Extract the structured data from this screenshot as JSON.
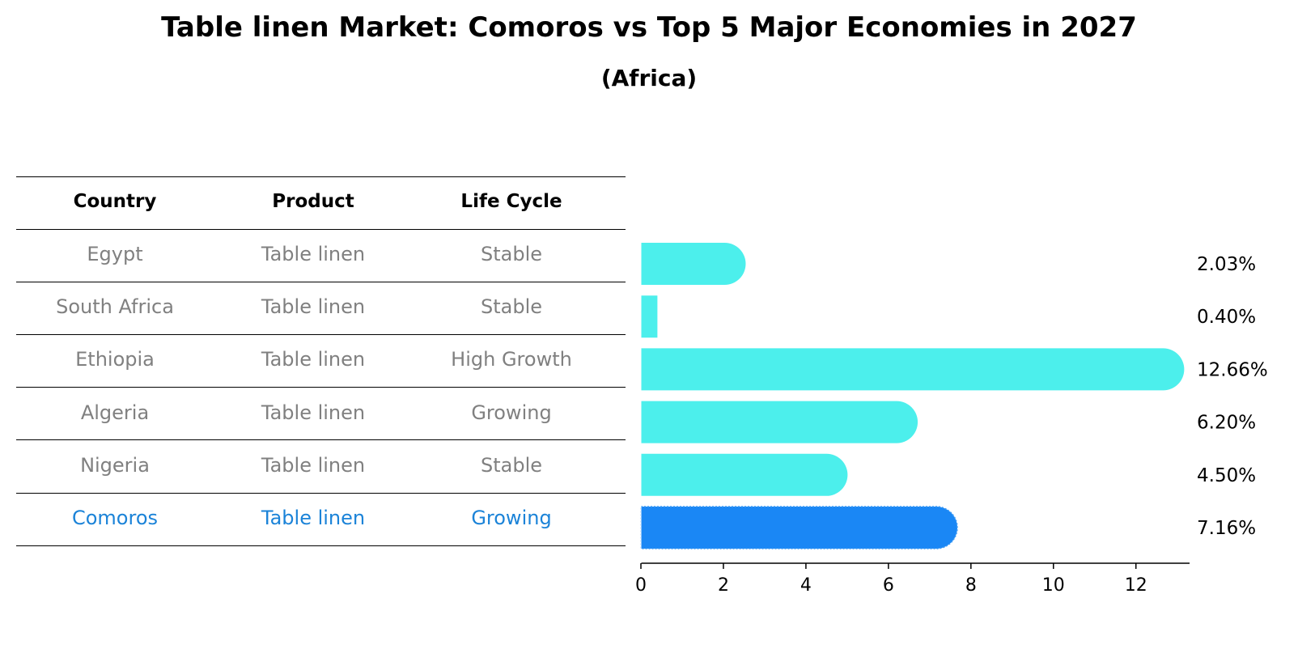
{
  "title": "Table linen Market: Comoros vs Top 5 Major Economies in 2027",
  "subtitle": "(Africa)",
  "table": {
    "headers": [
      "Country",
      "Product",
      "Life Cycle"
    ],
    "rows": [
      {
        "country": "Egypt",
        "product": "Table linen",
        "life_cycle": "Stable",
        "highlight": false
      },
      {
        "country": "South Africa",
        "product": "Table linen",
        "life_cycle": "Stable",
        "highlight": false
      },
      {
        "country": "Ethiopia",
        "product": "Table linen",
        "life_cycle": "High Growth",
        "highlight": false
      },
      {
        "country": "Algeria",
        "product": "Table linen",
        "life_cycle": "Growing",
        "highlight": false
      },
      {
        "country": "Nigeria",
        "product": "Table linen",
        "life_cycle": "Stable",
        "highlight": false
      },
      {
        "country": "Comoros",
        "product": "Table linen",
        "life_cycle": "Growing",
        "highlight": true
      }
    ]
  },
  "colors": {
    "bar": "#4cefec",
    "highlight_bar": "#1a87f5",
    "highlight_text": "#1b83d8",
    "other_text": "#808080"
  },
  "chart_data": {
    "type": "bar",
    "orientation": "horizontal",
    "categories": [
      "Egypt",
      "South Africa",
      "Ethiopia",
      "Algeria",
      "Nigeria",
      "Comoros"
    ],
    "values": [
      2.03,
      0.4,
      12.66,
      6.2,
      4.5,
      7.16
    ],
    "value_labels": [
      "2.03%",
      "0.40%",
      "12.66%",
      "6.20%",
      "4.50%",
      "7.16%"
    ],
    "highlight": "Comoros",
    "xlim": [
      0,
      13.3
    ],
    "xticks": [
      0,
      2,
      4,
      6,
      8,
      10,
      12
    ],
    "grid": false
  }
}
